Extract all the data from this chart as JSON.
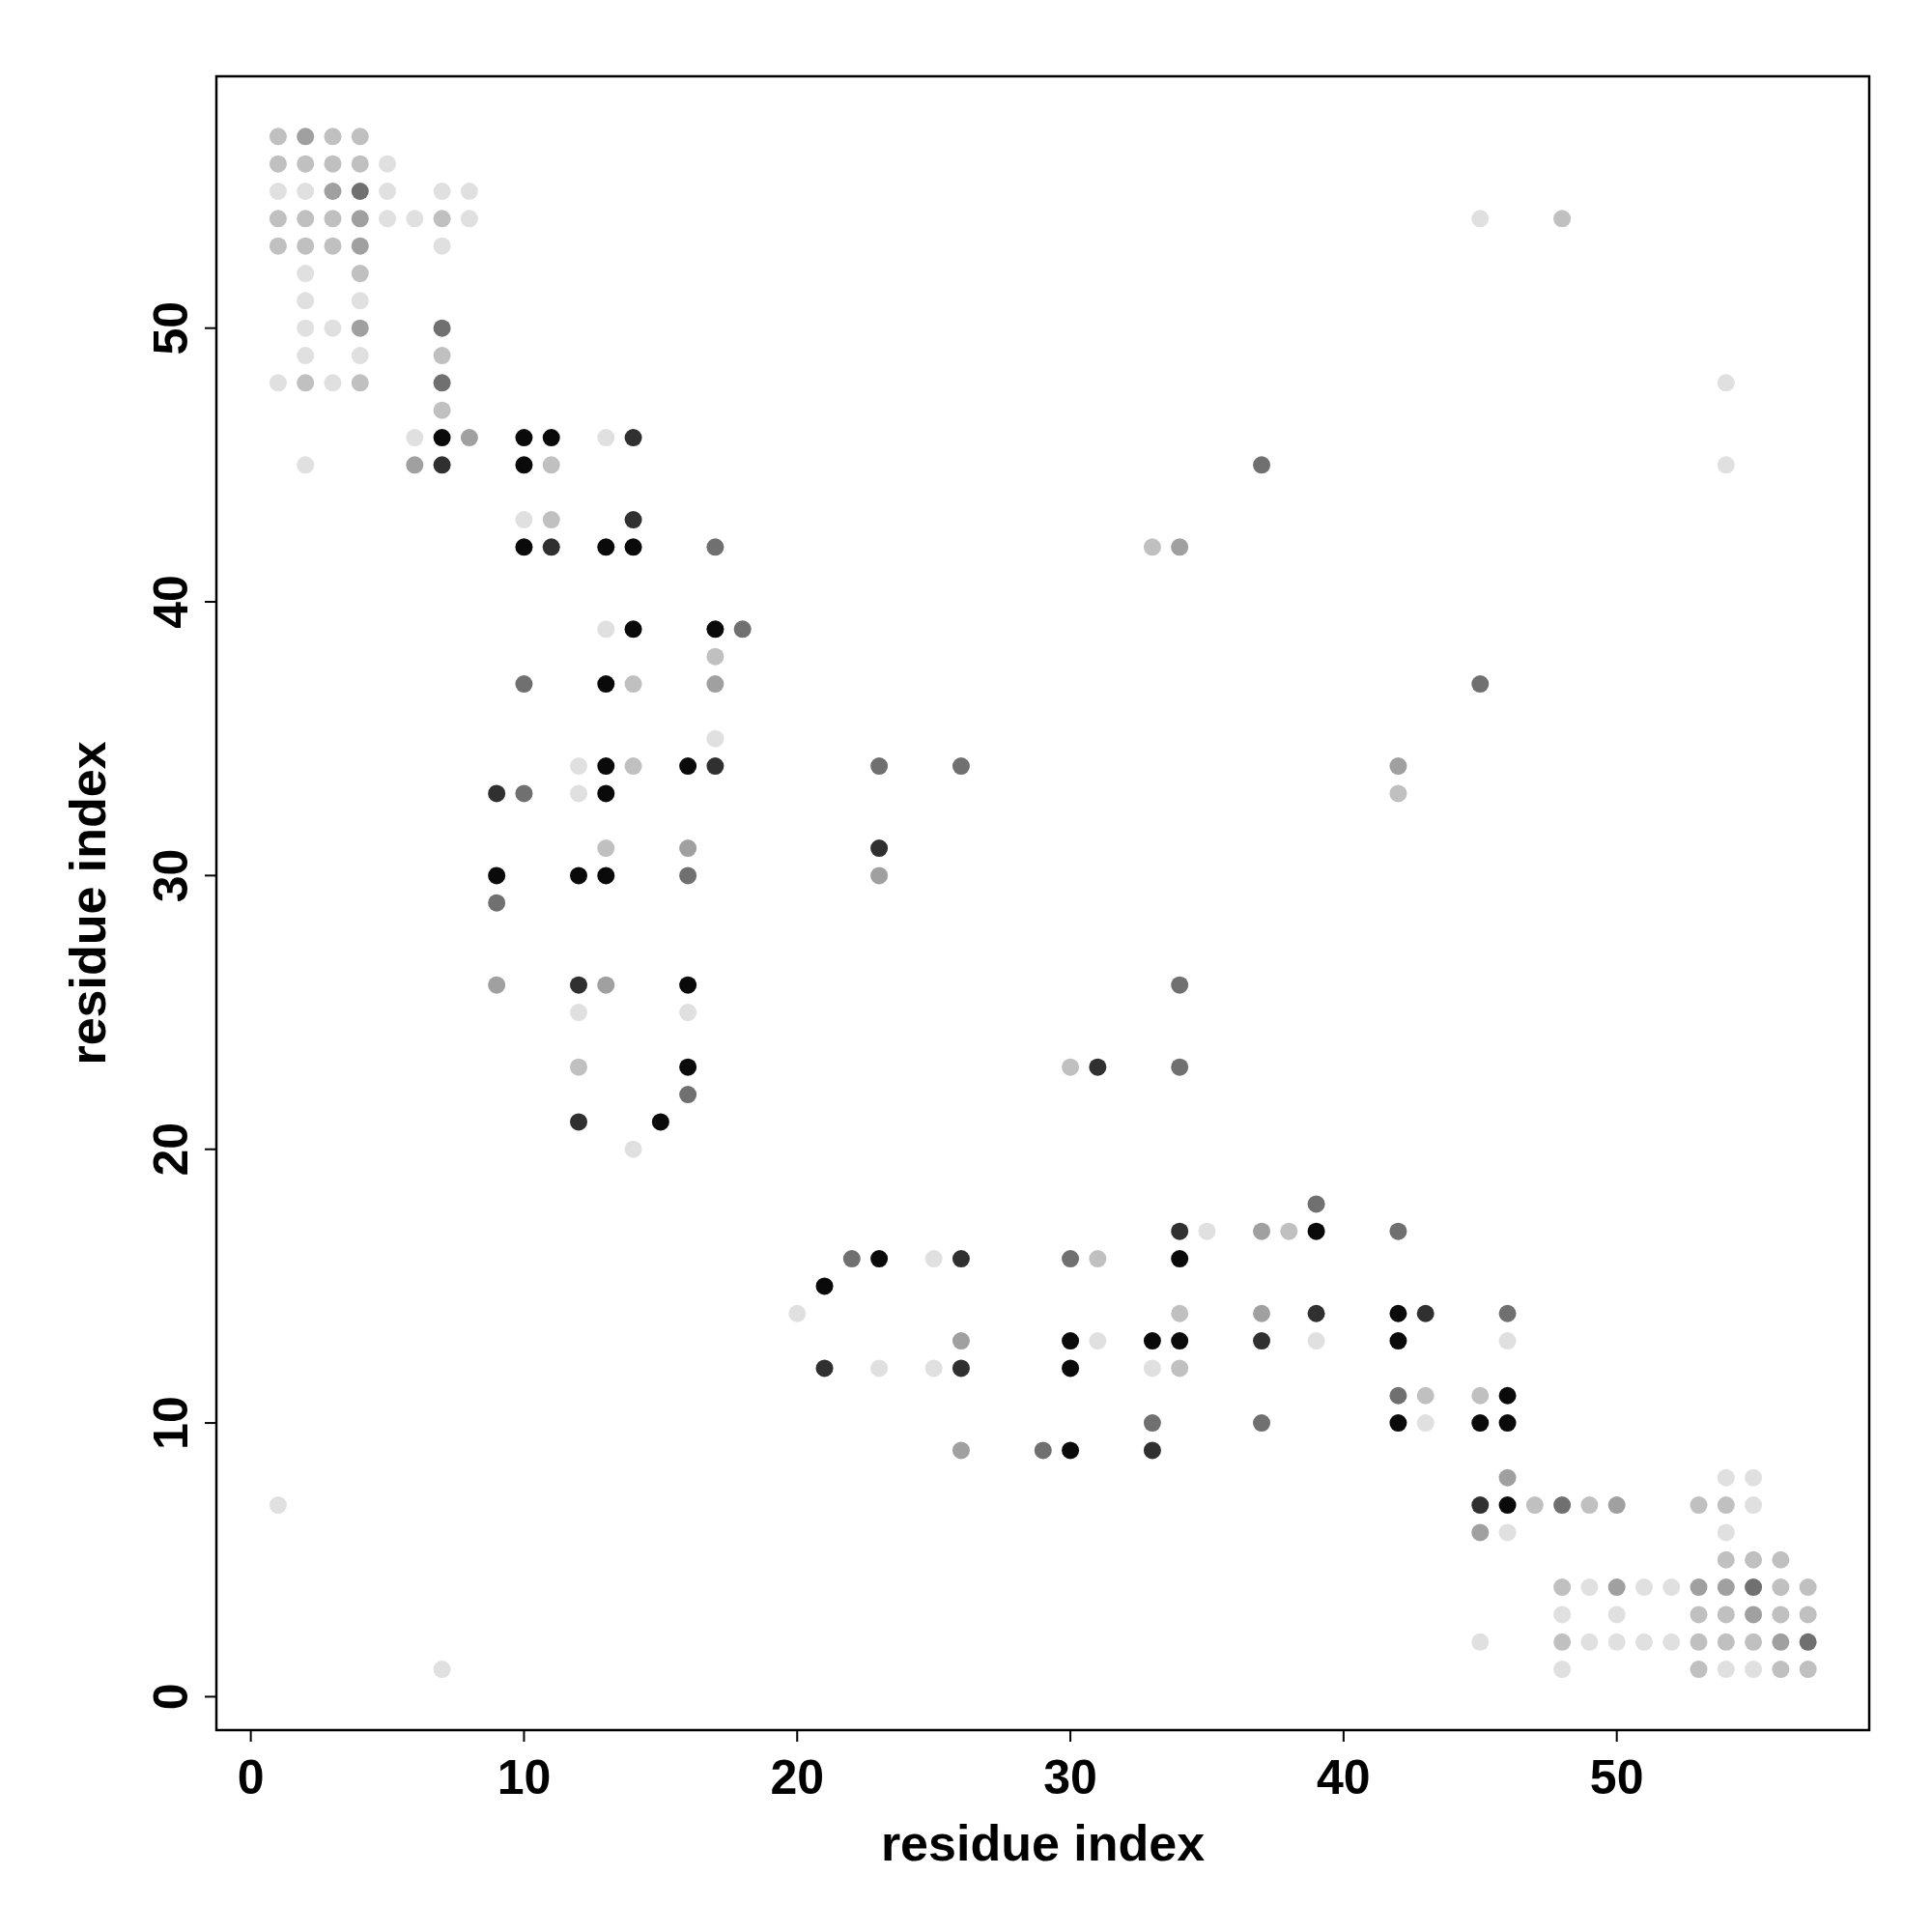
{
  "chart_data": {
    "type": "scatter",
    "xlabel": "residue index",
    "ylabel": "residue index",
    "xlim": [
      -1.26,
      59.24
    ],
    "ylim": [
      -1.22,
      59.2
    ],
    "xticks": [
      0,
      10,
      20,
      30,
      40,
      50
    ],
    "yticks": [
      0,
      10,
      20,
      30,
      40,
      50
    ],
    "marker": "circle",
    "grid": false,
    "series": [
      {
        "x": [
          1,
          1,
          1,
          1,
          1,
          1,
          1,
          2,
          2,
          2,
          2,
          2,
          2,
          2,
          2,
          2,
          2,
          2,
          3,
          3,
          3,
          3,
          3,
          3,
          3,
          4,
          4,
          4,
          4,
          4,
          4,
          4,
          4,
          4,
          4,
          5,
          5,
          5,
          6,
          6,
          6,
          7,
          7,
          7,
          7,
          7,
          7,
          7,
          7,
          7,
          7,
          8,
          8,
          8,
          9,
          9,
          9,
          9,
          10,
          10,
          10,
          10,
          10,
          10,
          11,
          11,
          11,
          11,
          12,
          12,
          12,
          12,
          12,
          12,
          12,
          13,
          13,
          13,
          13,
          13,
          13,
          13,
          13,
          13,
          14,
          14,
          14,
          14,
          14,
          14,
          14,
          15,
          16,
          16,
          16,
          16,
          16,
          16,
          16,
          17,
          17,
          17,
          17,
          17,
          17,
          18,
          20,
          21,
          21,
          22,
          23,
          23,
          23,
          23,
          23,
          25,
          25,
          26,
          26,
          26,
          26,
          26,
          29,
          30,
          30,
          30,
          30,
          30,
          31,
          31,
          31,
          33,
          33,
          33,
          33,
          33,
          34,
          34,
          34,
          34,
          34,
          34,
          34,
          34,
          35,
          37,
          37,
          37,
          37,
          37,
          38,
          39,
          39,
          39,
          39,
          42,
          42,
          42,
          42,
          42,
          42,
          42,
          43,
          43,
          43,
          45,
          45,
          45,
          45,
          45,
          45,
          45,
          46,
          46,
          46,
          46,
          46,
          46,
          46,
          47,
          48,
          48,
          48,
          48,
          48,
          48,
          49,
          49,
          49,
          50,
          50,
          50,
          50,
          51,
          51,
          52,
          52,
          53,
          53,
          53,
          53,
          53,
          54,
          54,
          54,
          54,
          54,
          54,
          54,
          54,
          54,
          54,
          55,
          55,
          55,
          55,
          55,
          55,
          55,
          56,
          56,
          56,
          56,
          56,
          57,
          57,
          57,
          57
        ],
        "values": [
          57,
          56,
          55,
          54,
          53,
          48,
          7,
          57,
          56,
          55,
          54,
          53,
          52,
          51,
          50,
          49,
          48,
          45,
          57,
          56,
          55,
          54,
          53,
          50,
          48,
          57,
          56,
          55,
          54,
          53,
          52,
          51,
          50,
          49,
          48,
          56,
          55,
          54,
          54,
          46,
          45,
          55,
          54,
          53,
          50,
          49,
          48,
          47,
          46,
          45,
          1,
          55,
          54,
          46,
          33,
          30,
          29,
          26,
          46,
          45,
          43,
          42,
          37,
          33,
          46,
          45,
          43,
          42,
          34,
          33,
          30,
          26,
          25,
          23,
          21,
          46,
          42,
          39,
          37,
          34,
          33,
          31,
          30,
          26,
          46,
          43,
          42,
          39,
          37,
          34,
          20,
          21,
          34,
          31,
          30,
          26,
          25,
          23,
          22,
          42,
          39,
          38,
          37,
          35,
          34,
          39,
          14,
          15,
          12,
          16,
          34,
          31,
          30,
          16,
          12,
          16,
          12,
          34,
          16,
          13,
          12,
          9,
          9,
          23,
          16,
          13,
          12,
          9,
          23,
          16,
          13,
          42,
          13,
          12,
          10,
          9,
          42,
          26,
          23,
          17,
          16,
          14,
          13,
          12,
          17,
          45,
          17,
          14,
          13,
          10,
          17,
          18,
          17,
          14,
          13,
          34,
          33,
          17,
          14,
          13,
          11,
          10,
          14,
          11,
          10,
          54,
          37,
          11,
          10,
          7,
          6,
          2,
          14,
          13,
          11,
          10,
          8,
          7,
          6,
          7,
          54,
          7,
          4,
          3,
          2,
          1,
          7,
          4,
          2,
          7,
          4,
          3,
          2,
          4,
          2,
          4,
          2,
          7,
          4,
          3,
          2,
          1,
          48,
          45,
          8,
          7,
          6,
          5,
          4,
          3,
          2,
          1,
          8,
          7,
          5,
          4,
          3,
          2,
          1,
          5,
          4,
          3,
          2,
          1,
          4,
          3,
          2,
          1
        ],
        "colors": [
          "#c0c0c0",
          "#c0c0c0",
          "#e0e0e0",
          "#c0c0c0",
          "#c0c0c0",
          "#e0e0e0",
          "#e0e0e0",
          "#a0a0a0",
          "#c0c0c0",
          "#e0e0e0",
          "#c0c0c0",
          "#c0c0c0",
          "#e0e0e0",
          "#e0e0e0",
          "#e0e0e0",
          "#e0e0e0",
          "#c0c0c0",
          "#e0e0e0",
          "#c0c0c0",
          "#c0c0c0",
          "#a0a0a0",
          "#c0c0c0",
          "#c0c0c0",
          "#e0e0e0",
          "#e0e0e0",
          "#c0c0c0",
          "#c0c0c0",
          "#707070",
          "#a0a0a0",
          "#a0a0a0",
          "#c0c0c0",
          "#e0e0e0",
          "#a0a0a0",
          "#e0e0e0",
          "#c0c0c0",
          "#e0e0e0",
          "#e0e0e0",
          "#e0e0e0",
          "#e0e0e0",
          "#e0e0e0",
          "#a0a0a0",
          "#e0e0e0",
          "#c0c0c0",
          "#e0e0e0",
          "#707070",
          "#c0c0c0",
          "#707070",
          "#c0c0c0",
          "#0a0a0a",
          "#303030",
          "#e0e0e0",
          "#e0e0e0",
          "#e0e0e0",
          "#a0a0a0",
          "#303030",
          "#0a0a0a",
          "#707070",
          "#a0a0a0",
          "#0a0a0a",
          "#0a0a0a",
          "#e0e0e0",
          "#0a0a0a",
          "#707070",
          "#707070",
          "#0a0a0a",
          "#c0c0c0",
          "#c0c0c0",
          "#303030",
          "#e0e0e0",
          "#e0e0e0",
          "#0a0a0a",
          "#303030",
          "#e0e0e0",
          "#c0c0c0",
          "#303030",
          "#e0e0e0",
          "#0a0a0a",
          "#e0e0e0",
          "#0a0a0a",
          "#0a0a0a",
          "#0a0a0a",
          "#c0c0c0",
          "#0a0a0a",
          "#a0a0a0",
          "#303030",
          "#303030",
          "#0a0a0a",
          "#0a0a0a",
          "#c0c0c0",
          "#c0c0c0",
          "#e0e0e0",
          "#0a0a0a",
          "#0a0a0a",
          "#a0a0a0",
          "#707070",
          "#0a0a0a",
          "#e0e0e0",
          "#0a0a0a",
          "#707070",
          "#707070",
          "#0a0a0a",
          "#c0c0c0",
          "#a0a0a0",
          "#e0e0e0",
          "#303030",
          "#707070",
          "#e0e0e0",
          "#0a0a0a",
          "#303030",
          "#707070",
          "#707070",
          "#303030",
          "#a0a0a0",
          "#0a0a0a",
          "#e0e0e0",
          "#e0e0e0",
          "#e0e0e0",
          "#707070",
          "#303030",
          "#a0a0a0",
          "#303030",
          "#a0a0a0",
          "#707070",
          "#c0c0c0",
          "#707070",
          "#0a0a0a",
          "#0a0a0a",
          "#0a0a0a",
          "#303030",
          "#c0c0c0",
          "#e0e0e0",
          "#c0c0c0",
          "#0a0a0a",
          "#e0e0e0",
          "#707070",
          "#303030",
          "#a0a0a0",
          "#707070",
          "#707070",
          "#303030",
          "#0a0a0a",
          "#c0c0c0",
          "#0a0a0a",
          "#c0c0c0",
          "#e0e0e0",
          "#707070",
          "#a0a0a0",
          "#a0a0a0",
          "#303030",
          "#707070",
          "#c0c0c0",
          "#707070",
          "#0a0a0a",
          "#303030",
          "#e0e0e0",
          "#a0a0a0",
          "#c0c0c0",
          "#707070",
          "#0a0a0a",
          "#0a0a0a",
          "#707070",
          "#0a0a0a",
          "#303030",
          "#c0c0c0",
          "#e0e0e0",
          "#e0e0e0",
          "#707070",
          "#c0c0c0",
          "#0a0a0a",
          "#303030",
          "#a0a0a0",
          "#e0e0e0",
          "#707070",
          "#e0e0e0",
          "#0a0a0a",
          "#0a0a0a",
          "#a0a0a0",
          "#0a0a0a",
          "#e0e0e0",
          "#c0c0c0",
          "#c0c0c0",
          "#707070",
          "#c0c0c0",
          "#e0e0e0",
          "#c0c0c0",
          "#e0e0e0",
          "#c0c0c0",
          "#e0e0e0",
          "#e0e0e0",
          "#a0a0a0",
          "#a0a0a0",
          "#e0e0e0",
          "#e0e0e0",
          "#e0e0e0",
          "#e0e0e0",
          "#e0e0e0",
          "#e0e0e0",
          "#c0c0c0",
          "#a0a0a0",
          "#c0c0c0",
          "#c0c0c0",
          "#c0c0c0",
          "#e0e0e0",
          "#e0e0e0",
          "#e0e0e0",
          "#c0c0c0",
          "#e0e0e0",
          "#c0c0c0",
          "#a0a0a0",
          "#c0c0c0",
          "#c0c0c0",
          "#e0e0e0",
          "#e0e0e0",
          "#e0e0e0",
          "#c0c0c0",
          "#707070",
          "#a0a0a0",
          "#c0c0c0",
          "#e0e0e0",
          "#c0c0c0",
          "#c0c0c0",
          "#c0c0c0",
          "#a0a0a0",
          "#c0c0c0",
          "#c0c0c0",
          "#c0c0c0",
          "#707070",
          "#c0c0c0"
        ]
      }
    ]
  }
}
